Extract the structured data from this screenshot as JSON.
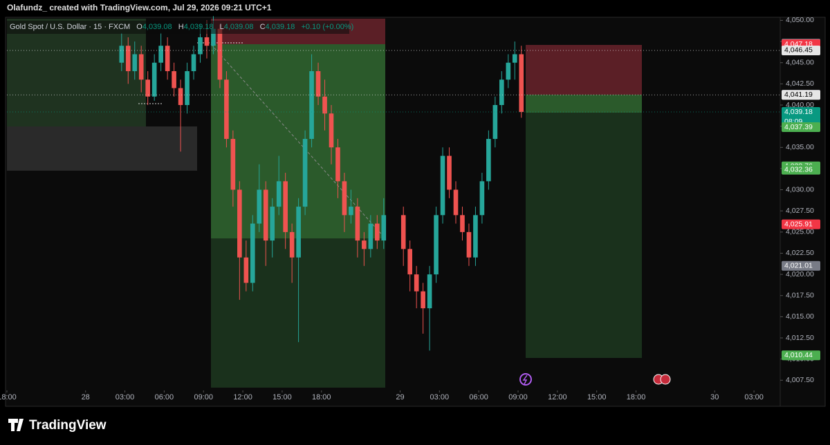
{
  "header": {
    "title": "Olafundz_ created with TradingView.com, Jul 29, 2026 09:21 UTC+1",
    "logo": "TradingView"
  },
  "chart_data": {
    "type": "candlestick",
    "legend": {
      "symbol": "Gold Spot / U.S. Dollar · 15 · FXCM",
      "open_label": "O",
      "open": "4,039.08",
      "high_label": "H",
      "high": "4,039.18",
      "low_label": "L",
      "low": "4,039.08",
      "close_label": "C",
      "close": "4,039.18",
      "change": "+0.10 (+0.00%)"
    },
    "x": [
      2.5,
      3,
      3.5,
      4,
      4.5,
      5,
      5.5,
      6,
      6.5,
      7,
      7.5,
      8,
      8.5,
      9,
      9.5,
      10,
      10.5,
      11,
      11.5,
      12,
      12.5,
      13,
      13.5,
      14,
      14.5,
      15,
      15.5,
      16,
      16.5,
      17,
      17.5,
      18,
      18.5,
      19,
      19.5,
      20,
      20.5,
      21,
      21.5,
      22,
      22.5,
      24,
      24.5,
      25,
      25.5,
      26,
      26.5,
      27,
      27.5,
      28,
      28.5,
      29,
      29.5,
      30,
      30.5,
      31,
      31.5,
      32,
      32.5,
      33
    ],
    "open": [
      4045,
      4047,
      4044,
      4046,
      4043,
      4041,
      4045,
      4047,
      4044,
      4042,
      4040,
      4044,
      4046,
      4048,
      4047,
      4049,
      4043,
      4036,
      4030,
      4022,
      4019,
      4026,
      4030,
      4024,
      4028,
      4031,
      4025,
      4022,
      4028,
      4036,
      4044,
      4041,
      4039,
      4035,
      4031,
      4027,
      4028,
      4024,
      4023,
      4026,
      4024,
      4027,
      4023,
      4020,
      4018,
      4016,
      4020,
      4027,
      4034,
      4030,
      4027,
      4025,
      4022,
      4027,
      4031,
      4036,
      4040,
      4043,
      4045,
      4046
    ],
    "high": [
      4048.5,
      4048,
      4047.5,
      4047,
      4044,
      4046,
      4048.5,
      4048,
      4045,
      4043,
      4045,
      4047,
      4049.5,
      4050,
      4050.5,
      4049.5,
      4044,
      4037,
      4031,
      4024,
      4027,
      4033,
      4031,
      4029,
      4034,
      4032,
      4026,
      4029,
      4037,
      4046,
      4045,
      4043,
      4040,
      4036,
      4032,
      4030,
      4029,
      4025,
      4027,
      4027,
      4029,
      4028,
      4024,
      4021,
      4019,
      4021,
      4028,
      4035,
      4035,
      4031,
      4028,
      4026,
      4028,
      4032,
      4037,
      4041,
      4044,
      4046,
      4047.5,
      4047
    ],
    "low": [
      4044,
      4042.5,
      4043,
      4041.5,
      4040,
      4040.5,
      4044,
      4043,
      4041,
      4034.5,
      4039,
      4043,
      4045,
      4045.5,
      4046,
      4042,
      4035,
      4028,
      4017,
      4018,
      4018,
      4025,
      4021,
      4022,
      4027,
      4023,
      4019,
      4012,
      4027,
      4035,
      4040,
      4037,
      4033,
      4029,
      4025,
      4026,
      4022,
      4021,
      4022,
      4023,
      4023,
      4021,
      4018,
      4016,
      4013,
      4011,
      4019,
      4026,
      4029,
      4026,
      4024,
      4021,
      4021,
      4026,
      4030,
      4035,
      4039,
      4042,
      4043,
      4038.5
    ],
    "close": [
      4047,
      4044,
      4046,
      4043,
      4041,
      4045,
      4047,
      4044,
      4042,
      4040,
      4044,
      4046,
      4048,
      4047,
      4049,
      4043,
      4036,
      4030,
      4022,
      4019,
      4026,
      4030,
      4024,
      4028,
      4031,
      4025,
      4022,
      4028,
      4036,
      4044,
      4041,
      4039,
      4035,
      4031,
      4027,
      4028,
      4024,
      4023,
      4026,
      4024,
      4027,
      4023,
      4020,
      4018,
      4016,
      4020,
      4027,
      4034,
      4030,
      4027,
      4025,
      4022,
      4027,
      4031,
      4036,
      4040,
      4043,
      4045,
      4046,
      4039.18
    ],
    "up_color": "#26a69a",
    "down_color": "#ef5350",
    "xlim": [
      -6,
      53
    ],
    "xticks": [
      {
        "value": -6,
        "label": "18:00"
      },
      {
        "value": 0,
        "label": "28"
      },
      {
        "value": 3,
        "label": "03:00"
      },
      {
        "value": 6,
        "label": "06:00"
      },
      {
        "value": 9,
        "label": "09:00"
      },
      {
        "value": 12,
        "label": "12:00"
      },
      {
        "value": 15,
        "label": "15:00"
      },
      {
        "value": 18,
        "label": "18:00"
      },
      {
        "value": 24,
        "label": "29"
      },
      {
        "value": 27,
        "label": "03:00"
      },
      {
        "value": 30,
        "label": "06:00"
      },
      {
        "value": 33,
        "label": "09:00"
      },
      {
        "value": 36,
        "label": "12:00"
      },
      {
        "value": 39,
        "label": "15:00"
      },
      {
        "value": 42,
        "label": "18:00"
      },
      {
        "value": 48,
        "label": "30"
      },
      {
        "value": 51,
        "label": "03:00"
      }
    ],
    "ylim": [
      4006.3,
      4050.2
    ],
    "yticks": [
      {
        "value": 4007.5,
        "label": "4,007.50"
      },
      {
        "value": 4010,
        "label": "4,010.00"
      },
      {
        "value": 4012.5,
        "label": "4,012.50"
      },
      {
        "value": 4015,
        "label": "4,015.00"
      },
      {
        "value": 4017.5,
        "label": "4,017.50"
      },
      {
        "value": 4020,
        "label": "4,020.00"
      },
      {
        "value": 4022.5,
        "label": "4,022.50"
      },
      {
        "value": 4025,
        "label": "4,025.00"
      },
      {
        "value": 4027.5,
        "label": "4,027.50"
      },
      {
        "value": 4030,
        "label": "4,030.00"
      },
      {
        "value": 4032.5,
        "label": "4,032.50"
      },
      {
        "value": 4035,
        "label": "4,035.00"
      },
      {
        "value": 4037.5,
        "label": "4,037.50"
      },
      {
        "value": 4040,
        "label": "4,040.00"
      },
      {
        "value": 4042.5,
        "label": "4,042.50"
      },
      {
        "value": 4045,
        "label": "4,045.00"
      },
      {
        "value": 4047.5,
        "label": "4,047.50"
      },
      {
        "value": 4050,
        "label": "4,050.00"
      }
    ],
    "price_labels": [
      {
        "value": 4047.26,
        "label": "4,047.26",
        "color": "#787b86"
      },
      {
        "value": 4047.18,
        "label": "4,047.18",
        "color": "#f23645"
      },
      {
        "value": 4046.45,
        "label": "4,046.45",
        "color": "#e6e6e6",
        "dotted": true
      },
      {
        "value": 4041.22,
        "label": "4,041.22",
        "color": "#787b86"
      },
      {
        "value": 4041.19,
        "label": "4,041.19",
        "color": "#e6e6e6",
        "dotted": true
      },
      {
        "value": 4039.18,
        "label": "4,039.18",
        "color": "#089981",
        "dotted": true,
        "countdown": "08:09"
      },
      {
        "value": 4037.39,
        "label": "4,037.39",
        "color": "#4caf50"
      },
      {
        "value": 4032.76,
        "label": "4,032.76",
        "color": "#4caf50"
      },
      {
        "value": 4032.36,
        "label": "4,032.36",
        "color": "#4caf50"
      },
      {
        "value": 4025.91,
        "label": "4,025.91",
        "color": "#f23645"
      },
      {
        "value": 4021.01,
        "label": "4,021.01",
        "color": "#787b86"
      },
      {
        "value": 4010.44,
        "label": "4,010.44",
        "color": "#4caf50"
      }
    ]
  }
}
